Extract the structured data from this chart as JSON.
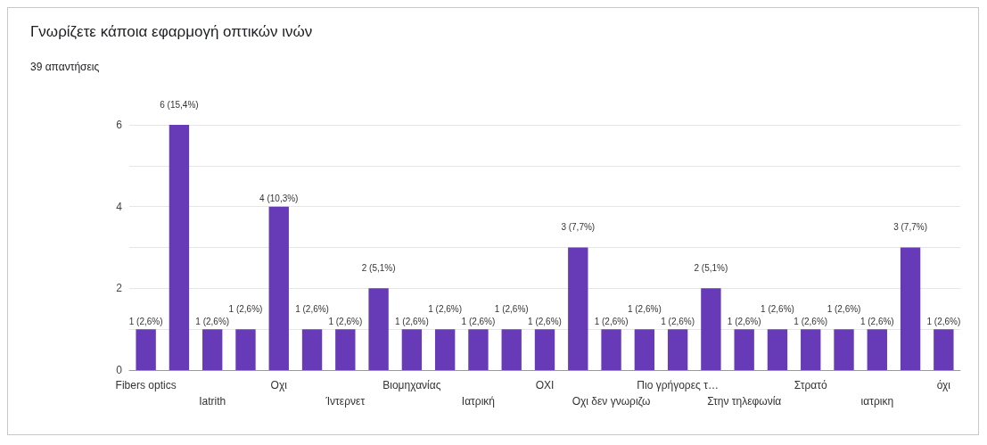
{
  "chart_data": {
    "type": "bar",
    "title": "Γνωρίζετε κάποια εφαρμογή οπτικών ινών",
    "subtitle": "39 απαντήσεις",
    "categories": [
      "Fibers optics",
      null,
      "Iatrith",
      null,
      "Οχι",
      null,
      "Ίντερνετ",
      null,
      "Βιομηχανίας",
      null,
      "Ιατρική",
      null,
      "ΟΧΙ",
      null,
      "Οχι δεν γνωριζω",
      null,
      "Πιο γρήγορες τ…",
      null,
      "Στην τηλεφωνία",
      null,
      "Στρατό",
      null,
      "ιατρικη",
      null,
      "όχι"
    ],
    "values": [
      1,
      6,
      1,
      1,
      4,
      1,
      1,
      2,
      1,
      1,
      1,
      1,
      1,
      3,
      1,
      1,
      1,
      2,
      1,
      1,
      1,
      1,
      1,
      3,
      1
    ],
    "value_labels": [
      "1 (2,6%)",
      "6 (15,4%)",
      "1 (2,6%)",
      "1 (2,6%)",
      "4 (10,3%)",
      "1 (2,6%)",
      "1 (2,6%)",
      "2 (5,1%)",
      "1 (2,6%)",
      "1 (2,6%)",
      "1 (2,6%)",
      "1 (2,6%)",
      "1 (2,6%)",
      "3 (7,7%)",
      "1 (2,6%)",
      "1 (2,6%)",
      "1 (2,6%)",
      "2 (5,1%)",
      "1 (2,6%)",
      "1 (2,6%)",
      "1 (2,6%)",
      "1 (2,6%)",
      "1 (2,6%)",
      "3 (7,7%)",
      "1 (2,6%)"
    ],
    "color": "#673ab7",
    "ylim": [
      0,
      6
    ],
    "yticks": [
      0,
      {
        "value": 1,
        "label": null
      },
      2,
      {
        "value": 3,
        "label": null
      },
      4,
      {
        "value": 5,
        "label": null
      },
      6
    ],
    "grid": "y"
  }
}
